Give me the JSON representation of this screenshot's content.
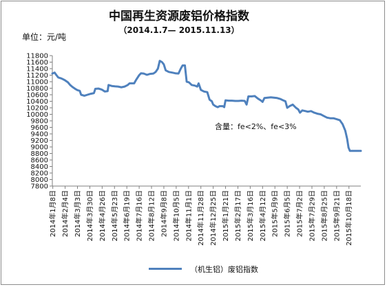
{
  "chart_data": {
    "type": "line",
    "title": "中国再生资源废铝价格指数",
    "subtitle": "（2014.1.7— 2015.11.13）",
    "unit_label": "单位：元/吨",
    "ylim": [
      7800,
      11800
    ],
    "yticks": [
      11800,
      11600,
      11400,
      11200,
      11000,
      10800,
      10600,
      10400,
      10200,
      10000,
      9800,
      9600,
      9400,
      9200,
      9000,
      8800,
      8600,
      8400,
      8200,
      8000,
      7800
    ],
    "x_start": "2014-01-07",
    "x_end": "2015-11-13",
    "xtick_labels": [
      "2014年1月8日",
      "2014年2月4日",
      "2014年3月3日",
      "2014年3月30日",
      "2014年4月26日",
      "2014年5月23日",
      "2014年6月19日",
      "2014年7月16日",
      "2014年8月12日",
      "2014年9月8日",
      "2014年10月5日",
      "2014年11月1日",
      "2014年11月28日",
      "2014年12月25日",
      "2015年1月21日",
      "2015年2月17日",
      "2015年3月16日",
      "2015年4月12日",
      "2015年5月9日",
      "2015年6月5日",
      "2015年7月2日",
      "2015年7月29日",
      "2015年8月25日",
      "2015年9月21日",
      "2015年10月18日"
    ],
    "xtick_dates": [
      "2014-01-08",
      "2014-02-04",
      "2014-03-03",
      "2014-03-30",
      "2014-04-26",
      "2014-05-23",
      "2014-06-19",
      "2014-07-16",
      "2014-08-12",
      "2014-09-08",
      "2014-10-05",
      "2014-11-01",
      "2014-11-28",
      "2014-12-25",
      "2015-01-21",
      "2015-02-17",
      "2015-03-16",
      "2015-04-12",
      "2015-05-09",
      "2015-06-05",
      "2015-07-02",
      "2015-07-29",
      "2015-08-25",
      "2015-09-21",
      "2015-10-18"
    ],
    "annotation": "含量：fe<2%、fe<3%",
    "legend": "（机生铝）废铝指数",
    "legend_position": "bottom",
    "grid": false,
    "line_color": "#4f81bd",
    "series": [
      {
        "name": "（机生铝）废铝指数",
        "points": [
          [
            "2014-01-07",
            11250
          ],
          [
            "2014-01-12",
            11280
          ],
          [
            "2014-01-16",
            11200
          ],
          [
            "2014-01-20",
            11130
          ],
          [
            "2014-01-27",
            11100
          ],
          [
            "2014-02-03",
            11050
          ],
          [
            "2014-02-10",
            10980
          ],
          [
            "2014-02-15",
            10900
          ],
          [
            "2014-02-20",
            10840
          ],
          [
            "2014-02-26",
            10780
          ],
          [
            "2014-03-03",
            10740
          ],
          [
            "2014-03-08",
            10720
          ],
          [
            "2014-03-11",
            10600
          ],
          [
            "2014-03-18",
            10570
          ],
          [
            "2014-03-25",
            10600
          ],
          [
            "2014-04-01",
            10630
          ],
          [
            "2014-04-08",
            10650
          ],
          [
            "2014-04-11",
            10780
          ],
          [
            "2014-04-18",
            10790
          ],
          [
            "2014-04-25",
            10760
          ],
          [
            "2014-05-02",
            10700
          ],
          [
            "2014-05-08",
            10710
          ],
          [
            "2014-05-10",
            10900
          ],
          [
            "2014-05-17",
            10870
          ],
          [
            "2014-05-24",
            10860
          ],
          [
            "2014-05-31",
            10850
          ],
          [
            "2014-06-07",
            10830
          ],
          [
            "2014-06-14",
            10850
          ],
          [
            "2014-06-21",
            10900
          ],
          [
            "2014-06-25",
            10950
          ],
          [
            "2014-07-05",
            10950
          ],
          [
            "2014-07-09",
            11050
          ],
          [
            "2014-07-16",
            11200
          ],
          [
            "2014-07-20",
            11260
          ],
          [
            "2014-07-26",
            11250
          ],
          [
            "2014-08-02",
            11210
          ],
          [
            "2014-08-09",
            11240
          ],
          [
            "2014-08-16",
            11250
          ],
          [
            "2014-08-21",
            11300
          ],
          [
            "2014-08-26",
            11400
          ],
          [
            "2014-08-30",
            11640
          ],
          [
            "2014-09-04",
            11600
          ],
          [
            "2014-09-08",
            11530
          ],
          [
            "2014-09-12",
            11350
          ],
          [
            "2014-09-19",
            11300
          ],
          [
            "2014-09-26",
            11280
          ],
          [
            "2014-10-03",
            11260
          ],
          [
            "2014-10-10",
            11250
          ],
          [
            "2014-10-15",
            11400
          ],
          [
            "2014-10-19",
            11500
          ],
          [
            "2014-10-24",
            11500
          ],
          [
            "2014-10-28",
            11000
          ],
          [
            "2014-11-02",
            10980
          ],
          [
            "2014-11-08",
            10900
          ],
          [
            "2014-11-15",
            10880
          ],
          [
            "2014-11-20",
            10850
          ],
          [
            "2014-11-23",
            10950
          ],
          [
            "2014-11-28",
            10750
          ],
          [
            "2014-12-05",
            10700
          ],
          [
            "2014-12-12",
            10680
          ],
          [
            "2014-12-17",
            10450
          ],
          [
            "2014-12-22",
            10400
          ],
          [
            "2014-12-25",
            10300
          ],
          [
            "2014-12-30",
            10250
          ],
          [
            "2015-01-04",
            10220
          ],
          [
            "2015-01-08",
            10250
          ],
          [
            "2015-01-15",
            10250
          ],
          [
            "2015-01-18",
            10220
          ],
          [
            "2015-01-21",
            10430
          ],
          [
            "2015-01-28",
            10420
          ],
          [
            "2015-02-04",
            10420
          ],
          [
            "2015-02-11",
            10410
          ],
          [
            "2015-02-18",
            10410
          ],
          [
            "2015-02-25",
            10420
          ],
          [
            "2015-03-04",
            10410
          ],
          [
            "2015-03-08",
            10300
          ],
          [
            "2015-03-12",
            10550
          ],
          [
            "2015-03-19",
            10550
          ],
          [
            "2015-03-26",
            10560
          ],
          [
            "2015-04-02",
            10480
          ],
          [
            "2015-04-09",
            10420
          ],
          [
            "2015-04-12",
            10380
          ],
          [
            "2015-04-16",
            10500
          ],
          [
            "2015-04-23",
            10510
          ],
          [
            "2015-04-30",
            10520
          ],
          [
            "2015-05-07",
            10510
          ],
          [
            "2015-05-14",
            10500
          ],
          [
            "2015-05-21",
            10470
          ],
          [
            "2015-05-27",
            10430
          ],
          [
            "2015-06-01",
            10400
          ],
          [
            "2015-06-05",
            10200
          ],
          [
            "2015-06-10",
            10250
          ],
          [
            "2015-06-17",
            10300
          ],
          [
            "2015-06-24",
            10200
          ],
          [
            "2015-06-29",
            10150
          ],
          [
            "2015-07-03",
            10050
          ],
          [
            "2015-07-08",
            10120
          ],
          [
            "2015-07-15",
            10100
          ],
          [
            "2015-07-20",
            10080
          ],
          [
            "2015-07-27",
            10100
          ],
          [
            "2015-08-03",
            10050
          ],
          [
            "2015-08-10",
            10020
          ],
          [
            "2015-08-17",
            10000
          ],
          [
            "2015-08-24",
            9950
          ],
          [
            "2015-08-31",
            9900
          ],
          [
            "2015-09-07",
            9880
          ],
          [
            "2015-09-14",
            9880
          ],
          [
            "2015-09-21",
            9850
          ],
          [
            "2015-09-28",
            9820
          ],
          [
            "2015-10-04",
            9700
          ],
          [
            "2015-10-10",
            9500
          ],
          [
            "2015-10-14",
            9250
          ],
          [
            "2015-10-17",
            8980
          ],
          [
            "2015-10-20",
            8880
          ],
          [
            "2015-10-27",
            8880
          ],
          [
            "2015-11-03",
            8880
          ],
          [
            "2015-11-13",
            8880
          ]
        ]
      }
    ]
  }
}
